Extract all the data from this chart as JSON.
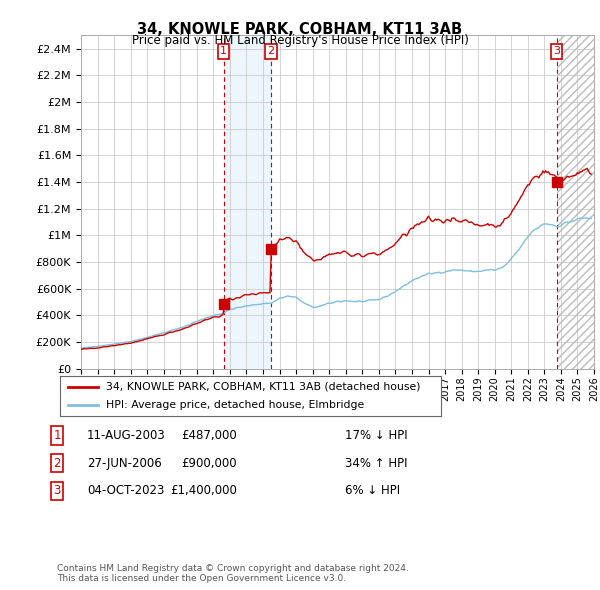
{
  "title": "34, KNOWLE PARK, COBHAM, KT11 3AB",
  "subtitle": "Price paid vs. HM Land Registry's House Price Index (HPI)",
  "ylim": [
    0,
    2500000
  ],
  "yticks": [
    0,
    200000,
    400000,
    600000,
    800000,
    1000000,
    1200000,
    1400000,
    1600000,
    1800000,
    2000000,
    2200000,
    2400000
  ],
  "ytick_labels": [
    "£0",
    "£200K",
    "£400K",
    "£600K",
    "£800K",
    "£1M",
    "£1.2M",
    "£1.4M",
    "£1.6M",
    "£1.8M",
    "£2M",
    "£2.2M",
    "£2.4M"
  ],
  "transactions": [
    {
      "date": 2003.62,
      "price": 487000,
      "label": "1"
    },
    {
      "date": 2006.49,
      "price": 900000,
      "label": "2"
    },
    {
      "date": 2023.75,
      "price": 1400000,
      "label": "3"
    }
  ],
  "transaction_details": [
    {
      "label": "1",
      "date_str": "11-AUG-2003",
      "price_str": "£487,000",
      "hpi_str": "17% ↓ HPI"
    },
    {
      "label": "2",
      "date_str": "27-JUN-2006",
      "price_str": "£900,000",
      "hpi_str": "34% ↑ HPI"
    },
    {
      "label": "3",
      "date_str": "04-OCT-2023",
      "price_str": "£1,400,000",
      "hpi_str": "6% ↓ HPI"
    }
  ],
  "hpi_line_color": "#7fbfdf",
  "price_line_color": "#cc0000",
  "transaction_dot_color": "#cc0000",
  "transaction_label_color": "#cc0000",
  "shading_color": "#ddeeff",
  "grid_color": "#cccccc",
  "background_color": "#ffffff",
  "legend_label_property": "34, KNOWLE PARK, COBHAM, KT11 3AB (detached house)",
  "legend_label_hpi": "HPI: Average price, detached house, Elmbridge",
  "footnote": "Contains HM Land Registry data © Crown copyright and database right 2024.\nThis data is licensed under the Open Government Licence v3.0."
}
